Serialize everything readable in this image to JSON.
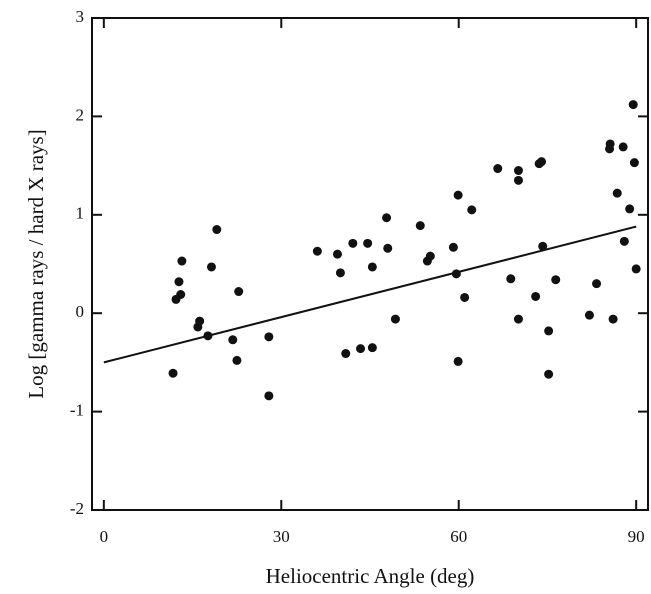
{
  "chart_data": {
    "type": "scatter",
    "x_label": "Heliocentric Angle (deg)",
    "y_label": "Log [gamma rays / hard X rays]",
    "xlim": [
      -2,
      92
    ],
    "ylim": [
      -2,
      3
    ],
    "xticks": [
      0,
      30,
      60,
      90
    ],
    "yticks": [
      -2,
      -1,
      0,
      1,
      2,
      3
    ],
    "color": "#111111",
    "x": [
      11.7,
      12.2,
      12.7,
      13.0,
      13.2,
      15.9,
      16.2,
      17.6,
      18.2,
      19.1,
      21.8,
      22.5,
      22.8,
      27.9,
      27.9,
      36.1,
      39.5,
      40.0,
      40.9,
      42.1,
      43.4,
      44.6,
      45.4,
      45.4,
      47.8,
      48.0,
      49.3,
      53.5,
      54.7,
      55.2,
      59.1,
      59.6,
      59.9,
      59.9,
      61.0,
      62.2,
      66.6,
      68.8,
      70.1,
      70.1,
      70.1,
      73.0,
      73.6,
      74.0,
      74.2,
      75.2,
      75.2,
      76.4,
      82.1,
      83.3,
      85.5,
      85.6,
      86.1,
      86.8,
      87.8,
      88.0,
      88.9,
      89.5,
      89.7,
      90.0
    ],
    "values": [
      -0.61,
      0.14,
      0.32,
      0.19,
      0.53,
      -0.14,
      -0.08,
      -0.23,
      0.47,
      0.85,
      -0.27,
      -0.48,
      0.22,
      -0.24,
      -0.84,
      0.63,
      0.6,
      0.41,
      -0.41,
      0.71,
      -0.36,
      0.71,
      0.47,
      -0.35,
      0.97,
      0.66,
      -0.06,
      0.89,
      0.53,
      0.58,
      0.67,
      0.4,
      1.2,
      -0.49,
      0.16,
      1.05,
      1.47,
      0.35,
      1.45,
      1.35,
      -0.06,
      0.17,
      1.52,
      1.54,
      0.68,
      -0.18,
      -0.62,
      0.34,
      -0.02,
      0.3,
      1.67,
      1.72,
      -0.06,
      1.22,
      1.69,
      0.73,
      1.06,
      2.12,
      1.53,
      0.45
    ],
    "fit": {
      "x": [
        0,
        90
      ],
      "values": [
        -0.5,
        0.88
      ]
    }
  }
}
